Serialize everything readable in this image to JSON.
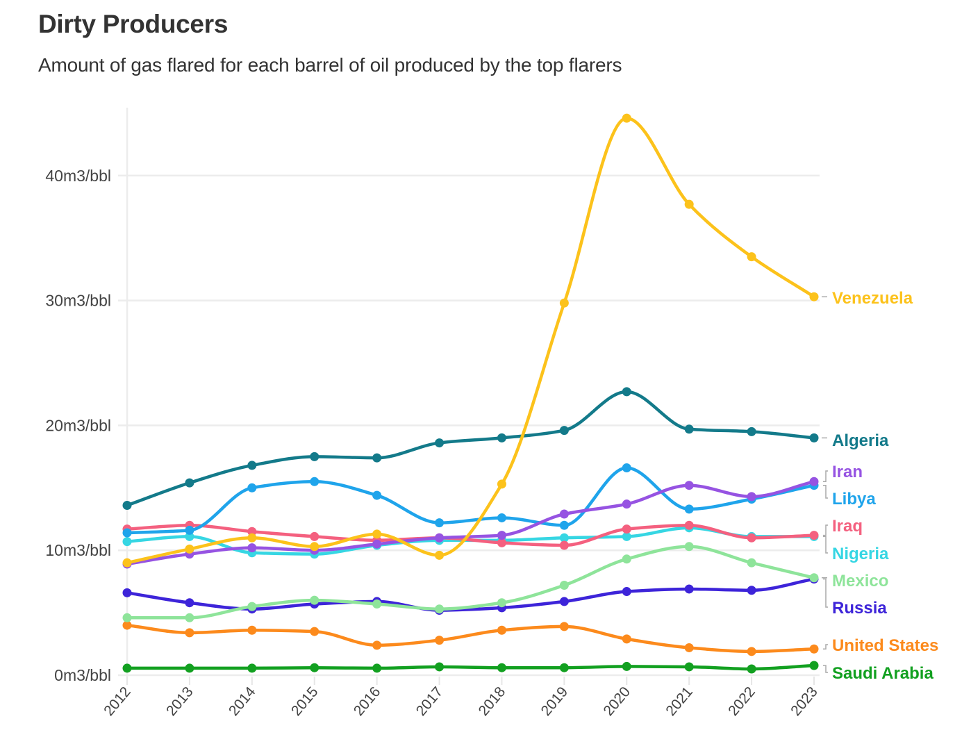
{
  "header": {
    "title": "Dirty Producers",
    "subtitle": "Amount of gas flared for each barrel of oil produced by the top flarers"
  },
  "chart_data": {
    "type": "line",
    "title": "Dirty Producers",
    "subtitle": "Amount of gas flared for each barrel of oil produced by the top flarers",
    "xlabel": "",
    "ylabel": "",
    "x": [
      "2012",
      "2013",
      "2014",
      "2015",
      "2016",
      "2017",
      "2018",
      "2019",
      "2020",
      "2021",
      "2022",
      "2023"
    ],
    "ylim": [
      0,
      45
    ],
    "yticks": [
      0,
      10,
      20,
      30,
      40
    ],
    "ytick_labels": [
      "0m3/bbl",
      "10m3/bbl",
      "20m3/bbl",
      "30m3/bbl",
      "40m3/bbl"
    ],
    "grid": true,
    "legend": "direct labels at right end of lines",
    "curve": "smooth (monotone-like spline) with point markers",
    "series": [
      {
        "name": "Venezuela",
        "color": "#fcc21b",
        "values": [
          9.0,
          10.1,
          11.0,
          10.3,
          11.3,
          9.6,
          15.3,
          29.8,
          44.6,
          37.7,
          33.5,
          30.3
        ]
      },
      {
        "name": "Algeria",
        "color": "#137a8a",
        "values": [
          13.6,
          15.4,
          16.8,
          17.5,
          17.4,
          18.6,
          19.0,
          19.6,
          22.7,
          19.7,
          19.5,
          19.0
        ]
      },
      {
        "name": "Iran",
        "color": "#9653e2",
        "values": [
          8.9,
          9.7,
          10.2,
          10.0,
          10.5,
          11.0,
          11.2,
          12.9,
          13.7,
          15.2,
          14.3,
          15.5
        ]
      },
      {
        "name": "Libya",
        "color": "#1fa4eb",
        "values": [
          11.4,
          11.6,
          15.0,
          15.5,
          14.4,
          12.2,
          12.6,
          12.0,
          16.6,
          13.3,
          14.1,
          15.2
        ]
      },
      {
        "name": "Iraq",
        "color": "#f4607f",
        "values": [
          11.7,
          12.0,
          11.5,
          11.1,
          10.8,
          11.0,
          10.6,
          10.4,
          11.7,
          12.0,
          11.0,
          11.2
        ]
      },
      {
        "name": "Nigeria",
        "color": "#36d6e3",
        "values": [
          10.7,
          11.1,
          9.8,
          9.7,
          10.4,
          10.8,
          10.8,
          11.0,
          11.1,
          11.8,
          11.1,
          11.1
        ]
      },
      {
        "name": "Mexico",
        "color": "#8ee49a",
        "values": [
          4.6,
          4.6,
          5.5,
          6.0,
          5.7,
          5.3,
          5.8,
          7.2,
          9.3,
          10.3,
          9.0,
          7.8
        ]
      },
      {
        "name": "Russia",
        "color": "#3d24d9",
        "values": [
          6.6,
          5.8,
          5.3,
          5.7,
          5.9,
          5.2,
          5.4,
          5.9,
          6.7,
          6.9,
          6.8,
          7.7
        ]
      },
      {
        "name": "United States",
        "color": "#fc8a1c",
        "values": [
          4.0,
          3.4,
          3.6,
          3.5,
          2.4,
          2.8,
          3.6,
          3.9,
          2.9,
          2.2,
          1.9,
          2.1
        ]
      },
      {
        "name": "Saudi Arabia",
        "color": "#12a020",
        "values": [
          0.56,
          0.56,
          0.56,
          0.6,
          0.56,
          0.67,
          0.6,
          0.6,
          0.7,
          0.67,
          0.5,
          0.78
        ]
      }
    ]
  }
}
